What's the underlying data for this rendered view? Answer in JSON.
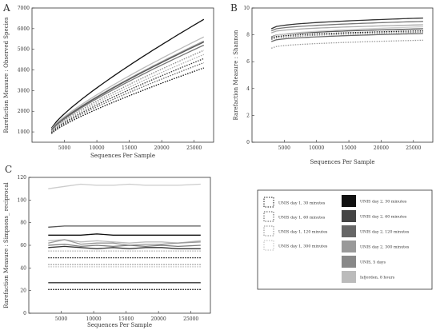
{
  "chart_data": [
    {
      "panel": "A",
      "type": "line",
      "xlabel": "Sequences Per Sample",
      "ylabel": "Rarefaction Measure : Observed Species",
      "xlim": [
        0,
        28000
      ],
      "ylim": [
        500,
        7000
      ],
      "xticks": [
        5000,
        10000,
        15000,
        20000,
        25000
      ],
      "yticks": [
        1000,
        2000,
        3000,
        4000,
        5000,
        6000,
        7000
      ],
      "x": [
        3000,
        26500
      ],
      "series": [
        {
          "ref": "A-dark",
          "color": "#111111",
          "style": "solid",
          "values": [
            1180,
            6450
          ]
        },
        {
          "ref": "A-light1",
          "color": "#bbbbbb",
          "style": "solid",
          "values": [
            1150,
            5600
          ]
        },
        {
          "ref": "A-light2",
          "color": "#999999",
          "style": "solid",
          "values": [
            1120,
            5400
          ]
        },
        {
          "ref": "A-mid1",
          "color": "#555555",
          "style": "solid",
          "values": [
            1100,
            5350
          ]
        },
        {
          "ref": "A-mid2",
          "color": "#777777",
          "style": "solid",
          "values": [
            1080,
            5200
          ]
        },
        {
          "ref": "A-dot1",
          "color": "#888888",
          "style": "dotted",
          "values": [
            1050,
            4950
          ]
        },
        {
          "ref": "A-dot2",
          "color": "#aaaaaa",
          "style": "dotted",
          "values": [
            1020,
            4750
          ]
        },
        {
          "ref": "A-dot3",
          "color": "#333333",
          "style": "dotted",
          "values": [
            980,
            4550
          ]
        },
        {
          "ref": "A-dot4",
          "color": "#666666",
          "style": "dotted",
          "values": [
            950,
            4350
          ]
        },
        {
          "ref": "A-dot5",
          "color": "#111111",
          "style": "dotted",
          "values": [
            920,
            4100
          ]
        }
      ]
    },
    {
      "panel": "B",
      "type": "line",
      "xlabel": "Sequences Per Sample",
      "ylabel": "Rarefaction Measure : Shannon",
      "xlim": [
        0,
        28000
      ],
      "ylim": [
        0,
        10
      ],
      "xticks": [
        5000,
        10000,
        15000,
        20000,
        25000
      ],
      "yticks": [
        0,
        2,
        4,
        6,
        8,
        10
      ],
      "x": [
        3000,
        26500
      ],
      "series": [
        {
          "ref": "B-1",
          "color": "#333333",
          "style": "solid",
          "values": [
            8.45,
            9.25
          ]
        },
        {
          "ref": "B-2",
          "color": "#777777",
          "style": "solid",
          "values": [
            8.3,
            9.0
          ]
        },
        {
          "ref": "B-3",
          "color": "#aaaaaa",
          "style": "solid",
          "values": [
            8.15,
            8.75
          ]
        },
        {
          "ref": "B-4",
          "color": "#555555",
          "style": "solid",
          "values": [
            7.85,
            8.45
          ]
        },
        {
          "ref": "B-5",
          "color": "#cccccc",
          "style": "solid",
          "values": [
            7.8,
            8.6
          ]
        },
        {
          "ref": "B-6",
          "color": "#111111",
          "style": "dotted",
          "values": [
            7.75,
            8.3
          ]
        },
        {
          "ref": "B-7",
          "color": "#888888",
          "style": "dotted",
          "values": [
            7.65,
            8.2
          ]
        },
        {
          "ref": "B-8",
          "color": "#666666",
          "style": "solid",
          "values": [
            7.5,
            8.1
          ]
        },
        {
          "ref": "B-9",
          "color": "#999999",
          "style": "dotted",
          "values": [
            7.0,
            7.6
          ]
        }
      ]
    },
    {
      "panel": "C",
      "type": "line",
      "xlabel": "Sequences Per Sample",
      "ylabel": "Rarefaction Measure : Simpsons_ reciprocal",
      "xlim": [
        0,
        28000
      ],
      "ylim": [
        0,
        120
      ],
      "xticks": [
        5000,
        10000,
        15000,
        20000,
        25000
      ],
      "yticks": [
        0,
        20,
        40,
        60,
        80,
        100,
        120
      ],
      "x": [
        3000,
        5500,
        8000,
        10500,
        13000,
        15500,
        18000,
        20500,
        23000,
        26500
      ],
      "series": [
        {
          "ref": "C-1",
          "color": "#cccccc",
          "style": "solid",
          "values": [
            110,
            112,
            114,
            113,
            113,
            114,
            113,
            113,
            113,
            114
          ]
        },
        {
          "ref": "C-2",
          "color": "#555555",
          "style": "solid",
          "values": [
            76,
            77,
            77,
            77,
            77,
            77,
            77,
            77,
            77,
            77
          ]
        },
        {
          "ref": "C-3",
          "color": "#111111",
          "style": "solid",
          "values": [
            69,
            69,
            69,
            70,
            69,
            69,
            69,
            69,
            69,
            69
          ]
        },
        {
          "ref": "C-4",
          "color": "#bbbbbb",
          "style": "solid",
          "values": [
            64,
            65,
            63,
            64,
            63,
            62,
            63,
            63,
            62,
            64
          ]
        },
        {
          "ref": "C-5",
          "color": "#999999",
          "style": "solid",
          "values": [
            62,
            65,
            61,
            62,
            62,
            60,
            61,
            61,
            62,
            63
          ]
        },
        {
          "ref": "C-6",
          "color": "#777777",
          "style": "solid",
          "values": [
            60,
            61,
            59,
            60,
            59,
            60,
            59,
            60,
            59,
            60
          ]
        },
        {
          "ref": "C-7",
          "color": "#333333",
          "style": "solid",
          "values": [
            58,
            59,
            58,
            57,
            58,
            57,
            58,
            58,
            57,
            57
          ]
        },
        {
          "ref": "C-8",
          "color": "#aaaaaa",
          "style": "dotted",
          "values": [
            55,
            55,
            55,
            55,
            55,
            55,
            55,
            55,
            55,
            55
          ]
        },
        {
          "ref": "C-9",
          "color": "#111111",
          "style": "dotted",
          "values": [
            49,
            49,
            49,
            49,
            49,
            49,
            49,
            49,
            49,
            49
          ]
        },
        {
          "ref": "C-10",
          "color": "#888888",
          "style": "dotted",
          "values": [
            43,
            43,
            43,
            43,
            43,
            43,
            43,
            43,
            43,
            43
          ]
        },
        {
          "ref": "C-11",
          "color": "#bbbbbb",
          "style": "dotted",
          "values": [
            41,
            41,
            41,
            41,
            41,
            41,
            41,
            41,
            41,
            41
          ]
        },
        {
          "ref": "C-12",
          "color": "#333333",
          "style": "solid",
          "values": [
            27,
            27,
            27,
            27,
            27,
            27,
            27,
            27,
            27,
            27
          ]
        },
        {
          "ref": "C-13",
          "color": "#111111",
          "style": "dotted",
          "values": [
            21,
            21,
            21,
            21,
            21,
            21,
            21,
            21,
            21,
            21
          ]
        }
      ]
    }
  ],
  "legend": {
    "left": [
      {
        "label": "UNIS day 1, 30 minutes",
        "color": "#111111"
      },
      {
        "label": "UNIS day 1, 60 minutes",
        "color": "#555555"
      },
      {
        "label": "UNIS day 1, 120 minutes",
        "color": "#888888"
      },
      {
        "label": "UNIS day 1, 300 minutes",
        "color": "#bbbbbb"
      }
    ],
    "right": [
      {
        "label": "UNIS day 2, 30 minutes",
        "color": "#111111"
      },
      {
        "label": "UNIS day 2, 60 minutes",
        "color": "#444444"
      },
      {
        "label": "UNIS day 2, 120 minutes",
        "color": "#666666"
      },
      {
        "label": "UNIS day 2, 300 minutes",
        "color": "#999999"
      },
      {
        "label": "UNIS, 5 days",
        "color": "#888888"
      },
      {
        "label": "Isfjorden, 8 hours",
        "color": "#bbbbbb"
      }
    ]
  }
}
